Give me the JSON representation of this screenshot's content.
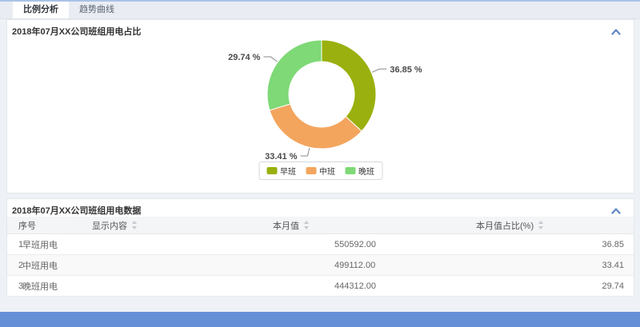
{
  "tabs": {
    "items": [
      {
        "label": "比例分析",
        "active": true
      },
      {
        "label": "趋势曲线",
        "active": false
      }
    ]
  },
  "chart_panel": {
    "title": "2018年07月XX公司班组用电占比"
  },
  "chart_data": {
    "type": "pie",
    "donut": true,
    "title": "2018年07月XX公司班组用电占比",
    "unit": "%",
    "legend_position": "bottom",
    "series": [
      {
        "name": "早班",
        "value": 36.85,
        "label": "36.85 %",
        "color": "#9ab00e"
      },
      {
        "name": "中班",
        "value": 33.41,
        "label": "33.41 %",
        "color": "#f3a55e"
      },
      {
        "name": "晚班",
        "value": 29.74,
        "label": "29.74 %",
        "color": "#7ed976"
      }
    ]
  },
  "table_panel": {
    "title": "2018年07月XX公司班组用电数据",
    "columns": {
      "index": "序号",
      "content": "显示内容",
      "month_value": "本月值",
      "month_percent": "本月值占比(%)"
    },
    "rows": [
      {
        "index": "1",
        "content": "早班用电",
        "month_value": "550592.00",
        "month_percent": "36.85"
      },
      {
        "index": "2",
        "content": "中班用电",
        "month_value": "499112.00",
        "month_percent": "33.41"
      },
      {
        "index": "3",
        "content": "晚班用电",
        "month_value": "444312.00",
        "month_percent": "29.74"
      }
    ]
  },
  "colors": {
    "accent_blue": "#6590d8",
    "chevron_blue": "#5f87c5"
  }
}
